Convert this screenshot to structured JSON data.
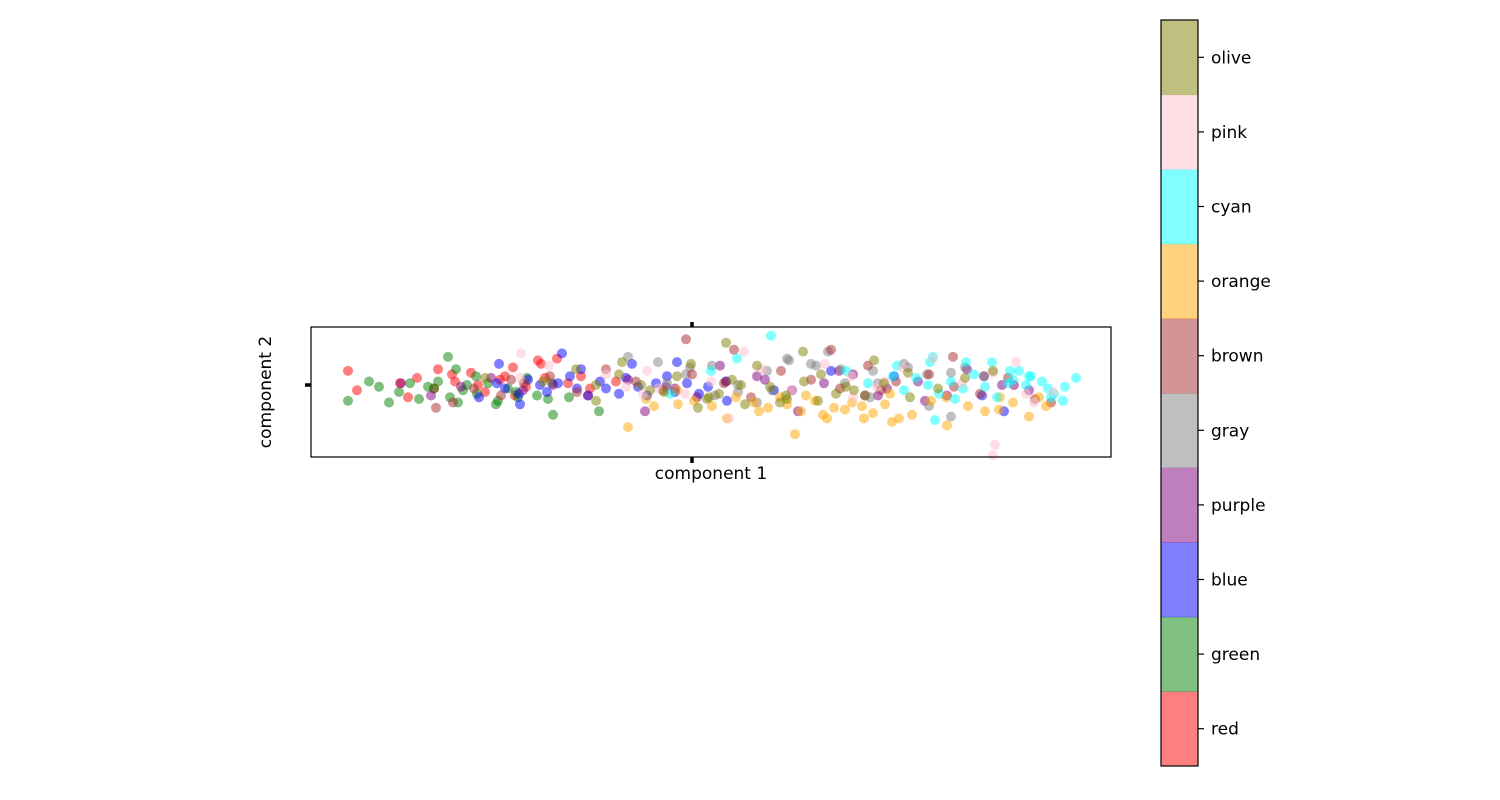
{
  "chart_data": {
    "type": "scatter",
    "title": "",
    "xlabel": "component 1",
    "ylabel": "component 2",
    "xlim": [
      -40,
      40
    ],
    "ylim": [
      -3.7,
      3.7
    ],
    "grid": false,
    "point_alpha": 0.5,
    "point_size": 12,
    "colorbar": {
      "labels": [
        "red",
        "green",
        "blue",
        "purple",
        "gray",
        "brown",
        "orange",
        "cyan",
        "pink",
        "olive"
      ],
      "colors": [
        "#ff0000",
        "#008000",
        "#0000ff",
        "#800080",
        "#808080",
        "#a52a2a",
        "#ffa500",
        "#00ffff",
        "#ffc0cb",
        "#808000"
      ],
      "range": [
        -0.5,
        9.5
      ],
      "ticks": [
        0,
        1,
        2,
        3,
        4,
        5,
        6,
        7,
        8,
        9
      ]
    },
    "series": [
      {
        "class": 0,
        "x": [
          -36.3,
          -35.4,
          -31.1,
          -29.4,
          -27.7,
          -25.6,
          -24.0,
          -22.6,
          -21.1,
          -19.8,
          -18.5,
          -17.0,
          -15.4,
          -14.3,
          -13.0,
          -27.3,
          -23.3,
          -19.6,
          -16.6,
          -30.3,
          -9.5,
          -12.1,
          -25.9,
          -20.6,
          -17.3
        ],
        "y": [
          1.2,
          0.1,
          0.5,
          0.8,
          0.2,
          0.6,
          1.1,
          0.0,
          0.7,
          1.4,
          0.3,
          1.6,
          1.9,
          0.5,
          0.9,
          1.3,
          0.4,
          -0.2,
          0.8,
          -0.3,
          0.6,
          0.2,
          1.0,
          0.9,
          1.8
        ]
      },
      {
        "class": 1,
        "x": [
          -36.3,
          -34.2,
          -33.2,
          -32.2,
          -31.2,
          -30.1,
          -29.2,
          -28.3,
          -27.3,
          -26.3,
          -25.3,
          -24.4,
          -23.4,
          -22.3,
          -21.3,
          -20.3,
          -19.3,
          -18.4,
          -17.4,
          -16.3,
          -25.5,
          -23.5,
          -21.5,
          -19.5,
          -15.8,
          -14.2,
          -11.2,
          -26.1,
          -27.7,
          -24.8,
          -15.9
        ],
        "y": [
          -0.5,
          0.6,
          0.3,
          -0.6,
          0.0,
          0.5,
          -0.4,
          0.3,
          0.6,
          2.0,
          -0.6,
          0.4,
          -0.1,
          0.5,
          -0.5,
          0.2,
          -0.3,
          0.8,
          -0.2,
          -0.4,
          1.3,
          0.9,
          -0.7,
          0.0,
          -1.3,
          -0.3,
          -1.1,
          -0.3,
          0.2,
          0.1,
          0.5
        ]
      },
      {
        "class": 2,
        "x": [
          -21.4,
          -20.6,
          -19.2,
          -18.3,
          -17.1,
          -16.4,
          -15.3,
          -14.1,
          -13.4,
          -12.3,
          -11.1,
          -10.5,
          -9.2,
          -8.5,
          -7.3,
          -6.4,
          -5.5,
          -4.4,
          -3.6,
          -2.4,
          -1.2,
          -0.3,
          1.5,
          -13.0,
          -21.2,
          -23.2,
          -14.9,
          -19.1,
          -7.9,
          -3.4,
          1.6,
          6.3,
          12.0,
          18.3,
          27.1,
          29.3
        ],
        "y": [
          0.5,
          0.2,
          -0.1,
          0.7,
          0.4,
          0.0,
          0.5,
          0.9,
          0.2,
          -0.2,
          0.6,
          0.2,
          -0.1,
          0.8,
          0.3,
          -0.2,
          0.5,
          0.9,
          0.0,
          0.5,
          -0.1,
          0.3,
          0.6,
          1.3,
          1.6,
          -0.3,
          2.2,
          -0.7,
          1.6,
          1.7,
          -0.5,
          0.1,
          1.2,
          0.9,
          -0.2,
          -1.1
        ]
      },
      {
        "class": 3,
        "x": [
          -31.0,
          -28.0,
          -25.0,
          -22.0,
          -18.8,
          -15.8,
          -12.3,
          -8.3,
          -4.5,
          -1.4,
          1.5,
          4.6,
          8.1,
          11.3,
          14.2,
          17.6,
          20.7,
          23.6,
          27.3,
          29.1,
          31.8,
          8.7,
          16.7,
          25.6,
          30.3,
          12.8,
          21.4,
          -6.6,
          -3.6,
          0.9,
          5.4,
          15.4
        ],
        "y": [
          0.5,
          -0.2,
          0.3,
          0.8,
          0.1,
          0.4,
          -0.2,
          0.7,
          0.3,
          -0.3,
          0.6,
          0.9,
          0.1,
          0.5,
          1.0,
          0.2,
          0.6,
          -0.2,
          0.9,
          0.4,
          0.1,
          -1.1,
          -0.2,
          1.3,
          0.4,
          1.2,
          -0.5,
          -1.1,
          0.2,
          1.5,
          0.7,
          -0.2
        ]
      },
      {
        "class": 4,
        "x": [
          -8.3,
          -5.3,
          -2.5,
          0.1,
          2.7,
          5.6,
          7.6,
          10.5,
          13.4,
          16.2,
          19.3,
          21.6,
          25.4,
          27.3,
          21.8,
          13.0,
          7.8,
          15.9,
          24.0,
          0.4,
          10.0,
          11.7,
          16.7,
          19.7,
          24.0,
          6.1,
          -4.4,
          -2.1,
          2.7,
          4.6
        ],
        "y": [
          2.0,
          1.7,
          1.0,
          1.5,
          0.4,
          1.2,
          1.9,
          1.5,
          0.5,
          1.2,
          1.6,
          1.0,
          1.4,
          0.9,
          -0.8,
          1.3,
          1.8,
          -0.3,
          1.1,
          -0.2,
          1.6,
          2.3,
          0.5,
          1.4,
          -1.4,
          0.1,
          0.5,
          1.4,
          0.0,
          -0.6
        ]
      },
      {
        "class": 5,
        "x": [
          -27.5,
          -23.7,
          -21.0,
          -18.7,
          -16.1,
          -13.4,
          -10.5,
          -7.5,
          -4.8,
          -1.9,
          1.3,
          4.0,
          7.0,
          10.0,
          12.9,
          15.7,
          18.5,
          21.8,
          24.3,
          26.9,
          29.7,
          32.4,
          34.0,
          -2.5,
          2.3,
          12.0,
          24.2,
          -20.0,
          -25.8,
          17.0
        ],
        "y": [
          -0.9,
          0.2,
          -0.2,
          0.5,
          0.9,
          0.0,
          1.3,
          0.6,
          0.1,
          1.0,
          0.5,
          -0.3,
          1.2,
          0.7,
          0.2,
          1.5,
          0.6,
          1.0,
          0.3,
          -0.1,
          0.8,
          -0.4,
          -0.6,
          3.0,
          2.4,
          2.4,
          2.0,
          0.7,
          -0.6,
          0.1
        ]
      },
      {
        "class": 6,
        "x": [
          -8.3,
          -6.5,
          -3.4,
          -1.7,
          0.1,
          2.5,
          4.3,
          5.7,
          7.6,
          9.0,
          10.4,
          11.2,
          12.3,
          13.4,
          14.1,
          15.1,
          16.2,
          17.4,
          18.8,
          20.1,
          22.0,
          23.6,
          25.7,
          27.4,
          28.9,
          30.2,
          31.8,
          32.8,
          33.5,
          8.4,
          6.9,
          1.6,
          4.8,
          9.5,
          11.6,
          17.9,
          15.3,
          18.1,
          23.5,
          28.8,
          -3.3,
          -5.7
        ],
        "y": [
          -2.0,
          -0.4,
          0.1,
          -0.5,
          -0.8,
          -0.3,
          -0.6,
          -0.9,
          -0.7,
          -1.1,
          -0.5,
          -1.3,
          -0.9,
          -1.0,
          -0.6,
          -0.8,
          -1.2,
          -0.7,
          -1.5,
          -1.3,
          -0.5,
          -1.9,
          -0.8,
          -1.1,
          -0.3,
          -0.6,
          -1.4,
          -0.3,
          -0.8,
          -2.4,
          -0.3,
          -1.5,
          -1.1,
          -0.2,
          -1.5,
          -0.1,
          -1.5,
          -1.7,
          -0.3,
          -1.0,
          -0.7,
          -0.8
        ]
      },
      {
        "class": 7,
        "x": [
          -4.1,
          0.0,
          2.6,
          6.0,
          13.5,
          15.7,
          18.2,
          19.3,
          20.5,
          21.7,
          22.8,
          24.0,
          25.2,
          26.3,
          27.4,
          28.6,
          29.7,
          30.8,
          32.0,
          33.1,
          34.3,
          35.4,
          36.5,
          22.2,
          25.5,
          28.1,
          31.8,
          33.7,
          35.2,
          30.2,
          24.4,
          22.4,
          18.6,
          21.9,
          29.9,
          31.5,
          34.0
        ],
        "y": [
          -0.1,
          1.2,
          1.9,
          3.2,
          1.2,
          0.5,
          0.9,
          0.1,
          0.8,
          0.4,
          -0.1,
          0.6,
          0.2,
          1.0,
          0.3,
          -0.3,
          0.5,
          1.2,
          0.9,
          0.6,
          -0.1,
          0.3,
          0.8,
          2.0,
          1.7,
          1.7,
          0.9,
          0.2,
          -0.5,
          0.7,
          -0.4,
          -1.6,
          1.5,
          1.7,
          1.2,
          0.4,
          -0.3
        ]
      },
      {
        "class": 8,
        "x": [
          -19.0,
          -10.5,
          -8.5,
          -6.4,
          -5.3,
          -2.6,
          0.0,
          3.3,
          5.1,
          8.0,
          11.4,
          14.0,
          16.6,
          19.2,
          22.2,
          25.1,
          28.2,
          30.5,
          31.5,
          32.3,
          34.2,
          28.4,
          28.2,
          14.2,
          17.4,
          1.8,
          -6.8,
          -19.1,
          -16.2
        ],
        "y": [
          2.2,
          1.0,
          0.3,
          1.2,
          0.2,
          -0.1,
          0.6,
          2.3,
          1.3,
          0.1,
          1.6,
          0.9,
          0.3,
          1.4,
          1.9,
          0.5,
          1.1,
          1.7,
          -0.1,
          -0.6,
          0.0,
          -3.0,
          -3.6,
          -0.3,
          0.6,
          -1.5,
          -0.1,
          0.8,
          1.5
        ]
      },
      {
        "class": 9,
        "x": [
          -22.6,
          -16.8,
          -13.5,
          -11.5,
          -8.9,
          -6.1,
          -3.4,
          -0.2,
          2.1,
          4.6,
          7.6,
          9.3,
          11.0,
          13.5,
          15.4,
          17.3,
          19.7,
          22.7,
          25.4,
          28.2,
          1.5,
          9.2,
          16.3,
          -11.5,
          -7.0,
          -4.7,
          -1.3,
          0.8,
          3.4,
          5.9,
          7.5,
          10.7,
          14.3,
          19.9,
          -2.0,
          3.0,
          12.5,
          6.9,
          -0.4,
          -9.2
        ],
        "y": [
          0.8,
          0.6,
          1.3,
          0.4,
          1.7,
          0.1,
          0.9,
          -0.3,
          0.7,
          1.5,
          -0.4,
          0.6,
          1.0,
          0.3,
          -0.2,
          0.5,
          1.1,
          0.2,
          0.8,
          1.2,
          2.8,
          2.3,
          1.8,
          -0.5,
          0.4,
          0.0,
          -0.9,
          -0.1,
          -0.7,
          0.3,
          -0.2,
          -0.5,
          0.1,
          -0.3,
          1.6,
          0.4,
          -0.1,
          -0.6,
          -0.4,
          1.0
        ]
      }
    ]
  }
}
